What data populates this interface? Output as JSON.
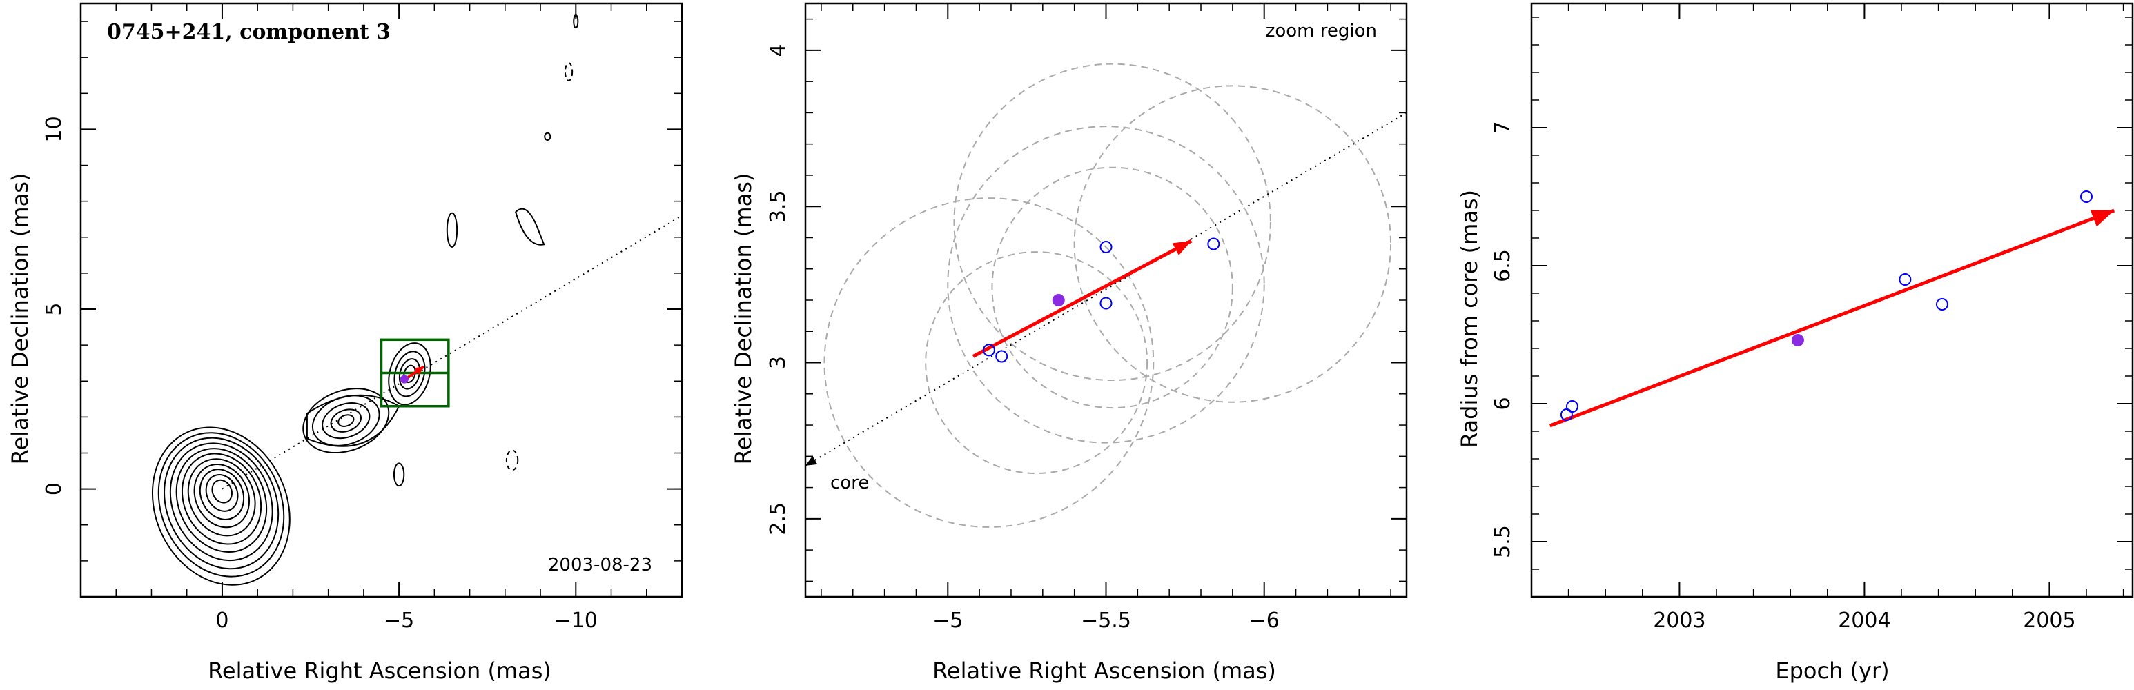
{
  "chart_data": [
    {
      "type": "contour",
      "title": "0745+241, component 3",
      "annotation": "2003-08-23",
      "xlabel": "Relative Right Ascension (mas)",
      "ylabel": "Relative Declination (mas)",
      "xlim": [
        4.0,
        -13.0
      ],
      "ylim": [
        -3.0,
        13.5
      ],
      "x_ticks": [
        0,
        -5,
        -10
      ],
      "x_tick_labels": [
        "0",
        "−5",
        "−10"
      ],
      "y_ticks": [
        0,
        5,
        10
      ],
      "y_tick_labels": [
        "0",
        "5",
        "10"
      ],
      "core": {
        "x": 0.0,
        "y": 0.0,
        "contour_radii_mas": [
          0.28,
          0.45,
          0.62,
          0.78,
          0.95,
          1.12,
          1.28,
          1.45,
          1.62,
          1.78,
          1.95
        ]
      },
      "component_2": {
        "x": -3.5,
        "y": 1.9
      },
      "component_3": {
        "x": -5.3,
        "y": 3.2
      },
      "jet_direction": {
        "from": [
          0.0,
          0.0
        ],
        "to": [
          -13.0,
          7.6
        ]
      },
      "zoom_box": {
        "x_range": [
          -4.5,
          -6.4
        ],
        "y_range": [
          2.3,
          4.15
        ]
      },
      "motion_arrow": {
        "from": [
          -5.1,
          3.0
        ],
        "to": [
          -5.7,
          3.4
        ],
        "color": "#ff0000"
      }
    },
    {
      "type": "scatter",
      "annotation_zoom": "zoom region",
      "annotation_core": "core",
      "xlabel": "Relative Right Ascension (mas)",
      "ylabel": "Relative Declination (mas)",
      "xlim": [
        -4.55,
        -6.45
      ],
      "ylim": [
        2.25,
        4.15
      ],
      "x_ticks": [
        -5,
        -5.5,
        -6
      ],
      "x_tick_labels": [
        "−5",
        "−5.5",
        "−6"
      ],
      "y_ticks": [
        2.5,
        3,
        3.5,
        4
      ],
      "y_tick_labels": [
        "2.5",
        "3",
        "3.5",
        "4"
      ],
      "points": [
        {
          "x": -5.13,
          "y": 3.04,
          "filled": false
        },
        {
          "x": -5.17,
          "y": 3.02,
          "filled": false
        },
        {
          "x": -5.35,
          "y": 3.2,
          "filled": true
        },
        {
          "x": -5.5,
          "y": 3.37,
          "filled": false
        },
        {
          "x": -5.5,
          "y": 3.19,
          "filled": false
        },
        {
          "x": -5.84,
          "y": 3.38,
          "filled": false
        }
      ],
      "beam_circles": [
        {
          "x": -5.13,
          "y": 3.0,
          "r": 0.52
        },
        {
          "x": -5.28,
          "y": 3.0,
          "r": 0.35
        },
        {
          "x": -5.52,
          "y": 3.24,
          "r": 0.38
        },
        {
          "x": -5.5,
          "y": 3.25,
          "r": 0.5
        },
        {
          "x": -5.52,
          "y": 3.45,
          "r": 0.5
        },
        {
          "x": -5.9,
          "y": 3.38,
          "r": 0.5
        }
      ],
      "jet_direction": {
        "from": [
          -6.45,
          3.8
        ],
        "to": [
          -4.55,
          2.67
        ]
      },
      "motion_arrow": {
        "from": [
          -5.08,
          3.02
        ],
        "to": [
          -5.77,
          3.39
        ],
        "color": "#ff0000"
      }
    },
    {
      "type": "scatter",
      "xlabel": "Epoch (yr)",
      "ylabel": "Radius from core (mas)",
      "xlim": [
        2002.2,
        2005.45
      ],
      "ylim": [
        5.3,
        7.45
      ],
      "x_ticks": [
        2003,
        2004,
        2005
      ],
      "x_tick_labels": [
        "2003",
        "2004",
        "2005"
      ],
      "y_ticks": [
        5.5,
        6,
        6.5,
        7
      ],
      "y_tick_labels": [
        "5.5",
        "6",
        "6.5",
        "7"
      ],
      "points": [
        {
          "x": 2002.39,
          "y": 5.96,
          "filled": false
        },
        {
          "x": 2002.42,
          "y": 5.99,
          "filled": false
        },
        {
          "x": 2003.64,
          "y": 6.23,
          "filled": true
        },
        {
          "x": 2004.22,
          "y": 6.45,
          "filled": false
        },
        {
          "x": 2004.42,
          "y": 6.36,
          "filled": false
        },
        {
          "x": 2005.2,
          "y": 6.75,
          "filled": false
        }
      ],
      "fit_line": {
        "from": [
          2002.3,
          5.92
        ],
        "to": [
          2005.35,
          6.7
        ],
        "color": "#ff0000"
      }
    }
  ]
}
